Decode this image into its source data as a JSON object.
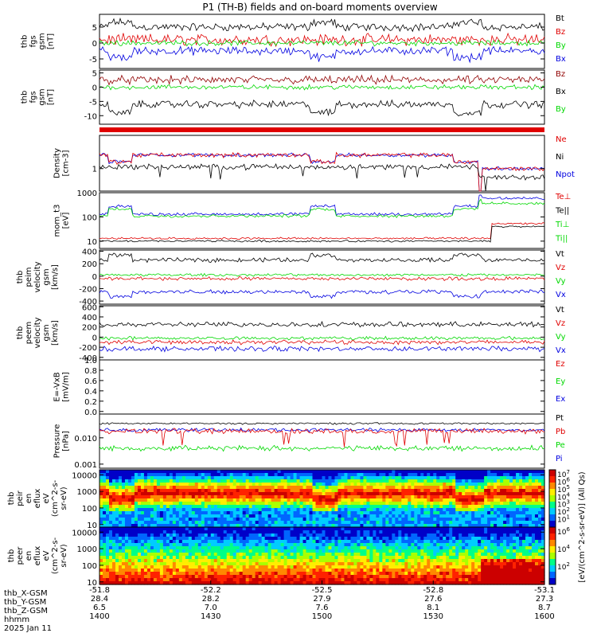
{
  "title": "P1 (TH-B) fields and on-board moments overview",
  "colors": {
    "black": "#000000",
    "red": "#e00000",
    "green": "#00d800",
    "blue": "#0000e0",
    "darkred": "#900000"
  },
  "chart_data": [
    {
      "type": "line",
      "id": "p1",
      "ylabel": [
        "thb",
        "fgs",
        "gsm",
        "[nT]"
      ],
      "ylim": [
        -8,
        9
      ],
      "ticks": [
        -5,
        0,
        5
      ],
      "legend": [
        {
          "name": "Bt",
          "color": "black"
        },
        {
          "name": "Bz",
          "color": "red"
        },
        {
          "name": "By",
          "color": "green"
        },
        {
          "name": "Bx",
          "color": "blue"
        }
      ]
    },
    {
      "type": "line",
      "id": "p2",
      "ylabel": [
        "thb",
        "fgs",
        "gsm",
        "[nT]"
      ],
      "ylim": [
        -13,
        6
      ],
      "ticks": [
        -10,
        -5,
        0,
        5
      ],
      "legend": [
        {
          "name": "Bz",
          "color": "darkred"
        },
        {
          "name": "Bx",
          "color": "black"
        },
        {
          "name": "By",
          "color": "green"
        }
      ]
    },
    {
      "type": "bar",
      "id": "bar",
      "label": "",
      "color": "red"
    },
    {
      "type": "line",
      "id": "p3",
      "ylabel": [
        "Density",
        "[cm-3]"
      ],
      "scale": "log",
      "ylim": [
        0.1,
        30
      ],
      "ticks": [
        1
      ],
      "legend": [
        {
          "name": "Ne",
          "color": "red"
        },
        {
          "name": "Ni",
          "color": "black"
        },
        {
          "name": "Npot",
          "color": "blue"
        }
      ]
    },
    {
      "type": "line",
      "id": "p4",
      "ylabel": [
        "mom_t3",
        "[eV]"
      ],
      "scale": "log",
      "ylim": [
        5,
        1000
      ],
      "ticks": [
        10,
        100,
        1000
      ],
      "legend": [
        {
          "name": "Te⊥",
          "color": "red"
        },
        {
          "name": "Te||",
          "color": "black"
        },
        {
          "name": "Ti⊥",
          "color": "green"
        },
        {
          "name": "Ti||",
          "color": "green"
        }
      ]
    },
    {
      "type": "line",
      "id": "p5",
      "ylabel": [
        "thb",
        "peim",
        "velocity",
        "gsm",
        "[km/s]"
      ],
      "ylim": [
        -450,
        420
      ],
      "ticks": [
        -400,
        -200,
        0,
        200,
        400
      ],
      "legend": [
        {
          "name": "Vt",
          "color": "black"
        },
        {
          "name": "Vz",
          "color": "red"
        },
        {
          "name": "Vy",
          "color": "green"
        },
        {
          "name": "Vx",
          "color": "blue"
        }
      ]
    },
    {
      "type": "line",
      "id": "p6",
      "ylabel": [
        "thb",
        "peem",
        "velocity",
        "gsm",
        "[km/s]"
      ],
      "ylim": [
        -450,
        620
      ],
      "ticks": [
        -400,
        -200,
        0,
        200,
        400,
        600
      ],
      "legend": [
        {
          "name": "Vt",
          "color": "black"
        },
        {
          "name": "Vz",
          "color": "red"
        },
        {
          "name": "Vy",
          "color": "green"
        },
        {
          "name": "Vx",
          "color": "blue"
        }
      ]
    },
    {
      "type": "line",
      "id": "p7",
      "ylabel": [
        "E=-VxB",
        "[mV/m]"
      ],
      "ylim": [
        -0.05,
        1.0
      ],
      "ticks": [
        0.0,
        0.2,
        0.4,
        0.6,
        0.8,
        1.0
      ],
      "legend": [
        {
          "name": "Ez",
          "color": "red"
        },
        {
          "name": "Ey",
          "color": "green"
        },
        {
          "name": "Ex",
          "color": "blue"
        }
      ]
    },
    {
      "type": "line",
      "id": "p8",
      "ylabel": [
        "Pressure",
        "[nPa]"
      ],
      "scale": "log",
      "ylim": [
        0.0007,
        0.08
      ],
      "ticks": [
        0.001,
        0.01
      ],
      "legend": [
        {
          "name": "Pt",
          "color": "black"
        },
        {
          "name": "Pb",
          "color": "red"
        },
        {
          "name": "Pe",
          "color": "green"
        },
        {
          "name": "Pi",
          "color": "blue"
        }
      ]
    },
    {
      "type": "heatmap",
      "id": "s1",
      "ylabel": [
        "thb",
        "peir",
        "en",
        "eflux",
        "eV",
        "(cm^2-s-",
        "sr-eV)"
      ],
      "scale": "log",
      "ylim": [
        7,
        20000
      ],
      "ticks": [
        10,
        100,
        1000,
        10000
      ]
    },
    {
      "type": "heatmap",
      "id": "s2",
      "ylabel": [
        "thb",
        "peer",
        "en",
        "eflux",
        "eV",
        "(cm^2-s-",
        "sr-eV)"
      ],
      "scale": "log",
      "ylim": [
        7,
        20000
      ],
      "ticks": [
        10,
        100,
        1000,
        10000
      ]
    }
  ],
  "colorbar": {
    "label": "[eV/(cm^2-s-sr-eV)] (All Qs)",
    "top_ticks": [
      "10^7",
      "10^6",
      "10^5",
      "10^4",
      "10^3",
      "10^2",
      "10^1"
    ],
    "bottom_ticks": [
      "10^6",
      "10^4",
      "10^2"
    ]
  },
  "xaxis": {
    "ticks": [
      {
        "thb_X": "-51.8",
        "thb_Y": "28.4",
        "thb_Z": "6.5",
        "hhmm": "1400"
      },
      {
        "thb_X": "-52.2",
        "thb_Y": "28.2",
        "thb_Z": "7.0",
        "hhmm": "1430"
      },
      {
        "thb_X": "-52.5",
        "thb_Y": "27.9",
        "thb_Z": "7.6",
        "hhmm": "1500"
      },
      {
        "thb_X": "-52.8",
        "thb_Y": "27.6",
        "thb_Z": "8.1",
        "hhmm": "1530"
      },
      {
        "thb_X": "-53.1",
        "thb_Y": "27.3",
        "thb_Z": "8.7",
        "hhmm": "1600"
      }
    ],
    "row_labels": [
      "thb_X-GSM",
      "thb_Y-GSM",
      "thb_Z-GSM",
      "hhmm",
      "2025 Jan 11"
    ]
  }
}
